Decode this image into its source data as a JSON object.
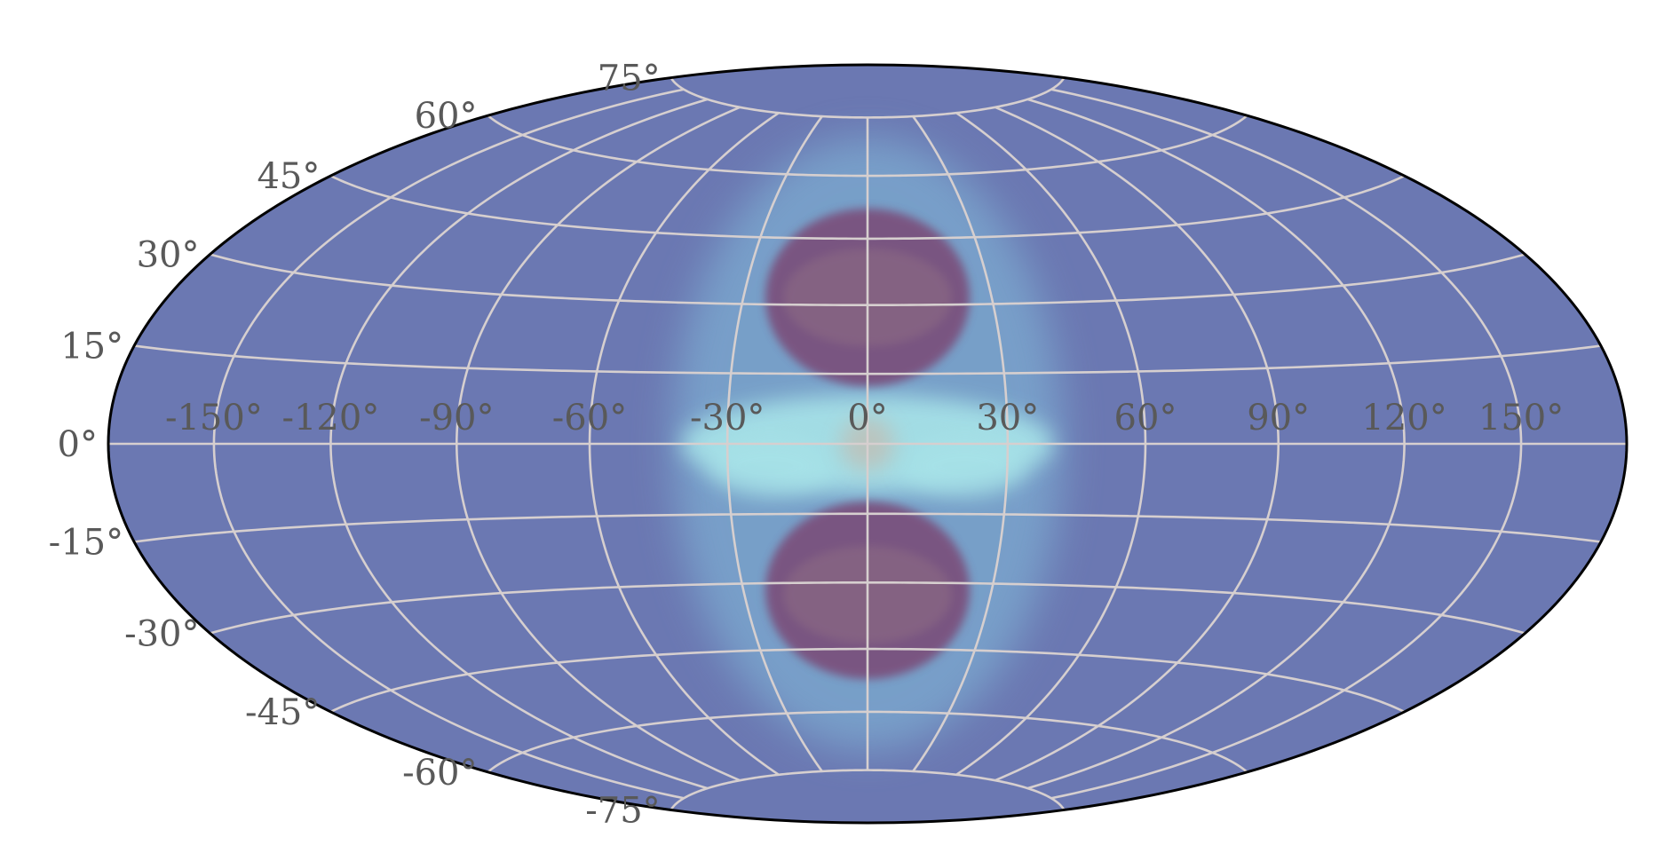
{
  "map": {
    "projection": "hammer",
    "lon_labels": [
      "-150°",
      "-120°",
      "-90°",
      "-60°",
      "-30°",
      "0°",
      "30°",
      "60°",
      "90°",
      "120°",
      "150°"
    ],
    "lat_labels": [
      "-75°",
      "-60°",
      "-45°",
      "-30°",
      "-15°",
      "0°",
      "15°",
      "30°",
      "45°",
      "60°",
      "75°"
    ],
    "lon_values": [
      -150,
      -120,
      -90,
      -60,
      -30,
      0,
      30,
      60,
      90,
      120,
      150
    ],
    "lat_values": [
      -75,
      -60,
      -45,
      -30,
      -15,
      0,
      15,
      30,
      45,
      60,
      75
    ],
    "colors": {
      "background": "#6b78b2",
      "halo": "#7aa6cd",
      "equator_glow": "#a7e3e8",
      "lobe": "#7a4f7c",
      "grid": "#d6cfcf",
      "outline": "#000000",
      "label": "#595959"
    }
  }
}
